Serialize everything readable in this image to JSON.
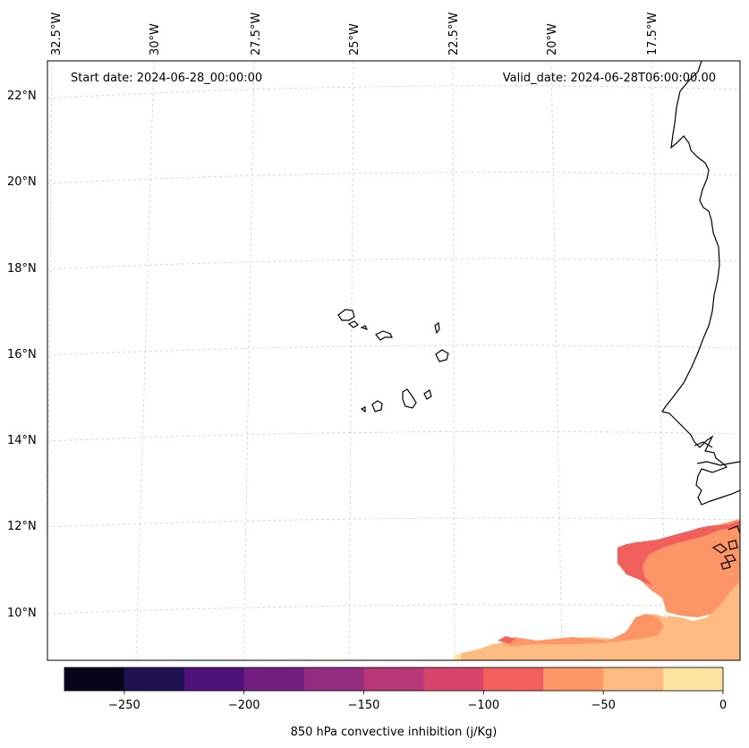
{
  "header": {
    "start_date": "Start date: 2024-06-28_00:00:00",
    "valid_date": "Valid_date: 2024-06-28T06:00:00.00"
  },
  "map": {
    "lon_labels": [
      "32.5°W",
      "30°W",
      "27.5°W",
      "25°W",
      "22.5°W",
      "20°W",
      "17.5°W"
    ],
    "lat_labels": [
      "22°N",
      "20°N",
      "18°N",
      "16°N",
      "14°N",
      "12°N",
      "10°N"
    ],
    "gridlines": "dashed",
    "coastline_color": "#000000"
  },
  "colorbar": {
    "label": "850 hPa convective inhibition (j/Kg)",
    "ticks": [
      "−250",
      "−200",
      "−150",
      "−100",
      "−50",
      "0"
    ],
    "range": [
      -275,
      0
    ],
    "levels": [
      -275,
      -250,
      -225,
      -200,
      -175,
      -150,
      -125,
      -100,
      -75,
      -50,
      -25,
      0
    ],
    "colors": [
      "#07051a",
      "#221150",
      "#4f127b",
      "#721f81",
      "#942c80",
      "#b73779",
      "#d8456c",
      "#f1605d",
      "#fd9567",
      "#febb81",
      "#fde3a0"
    ]
  }
}
